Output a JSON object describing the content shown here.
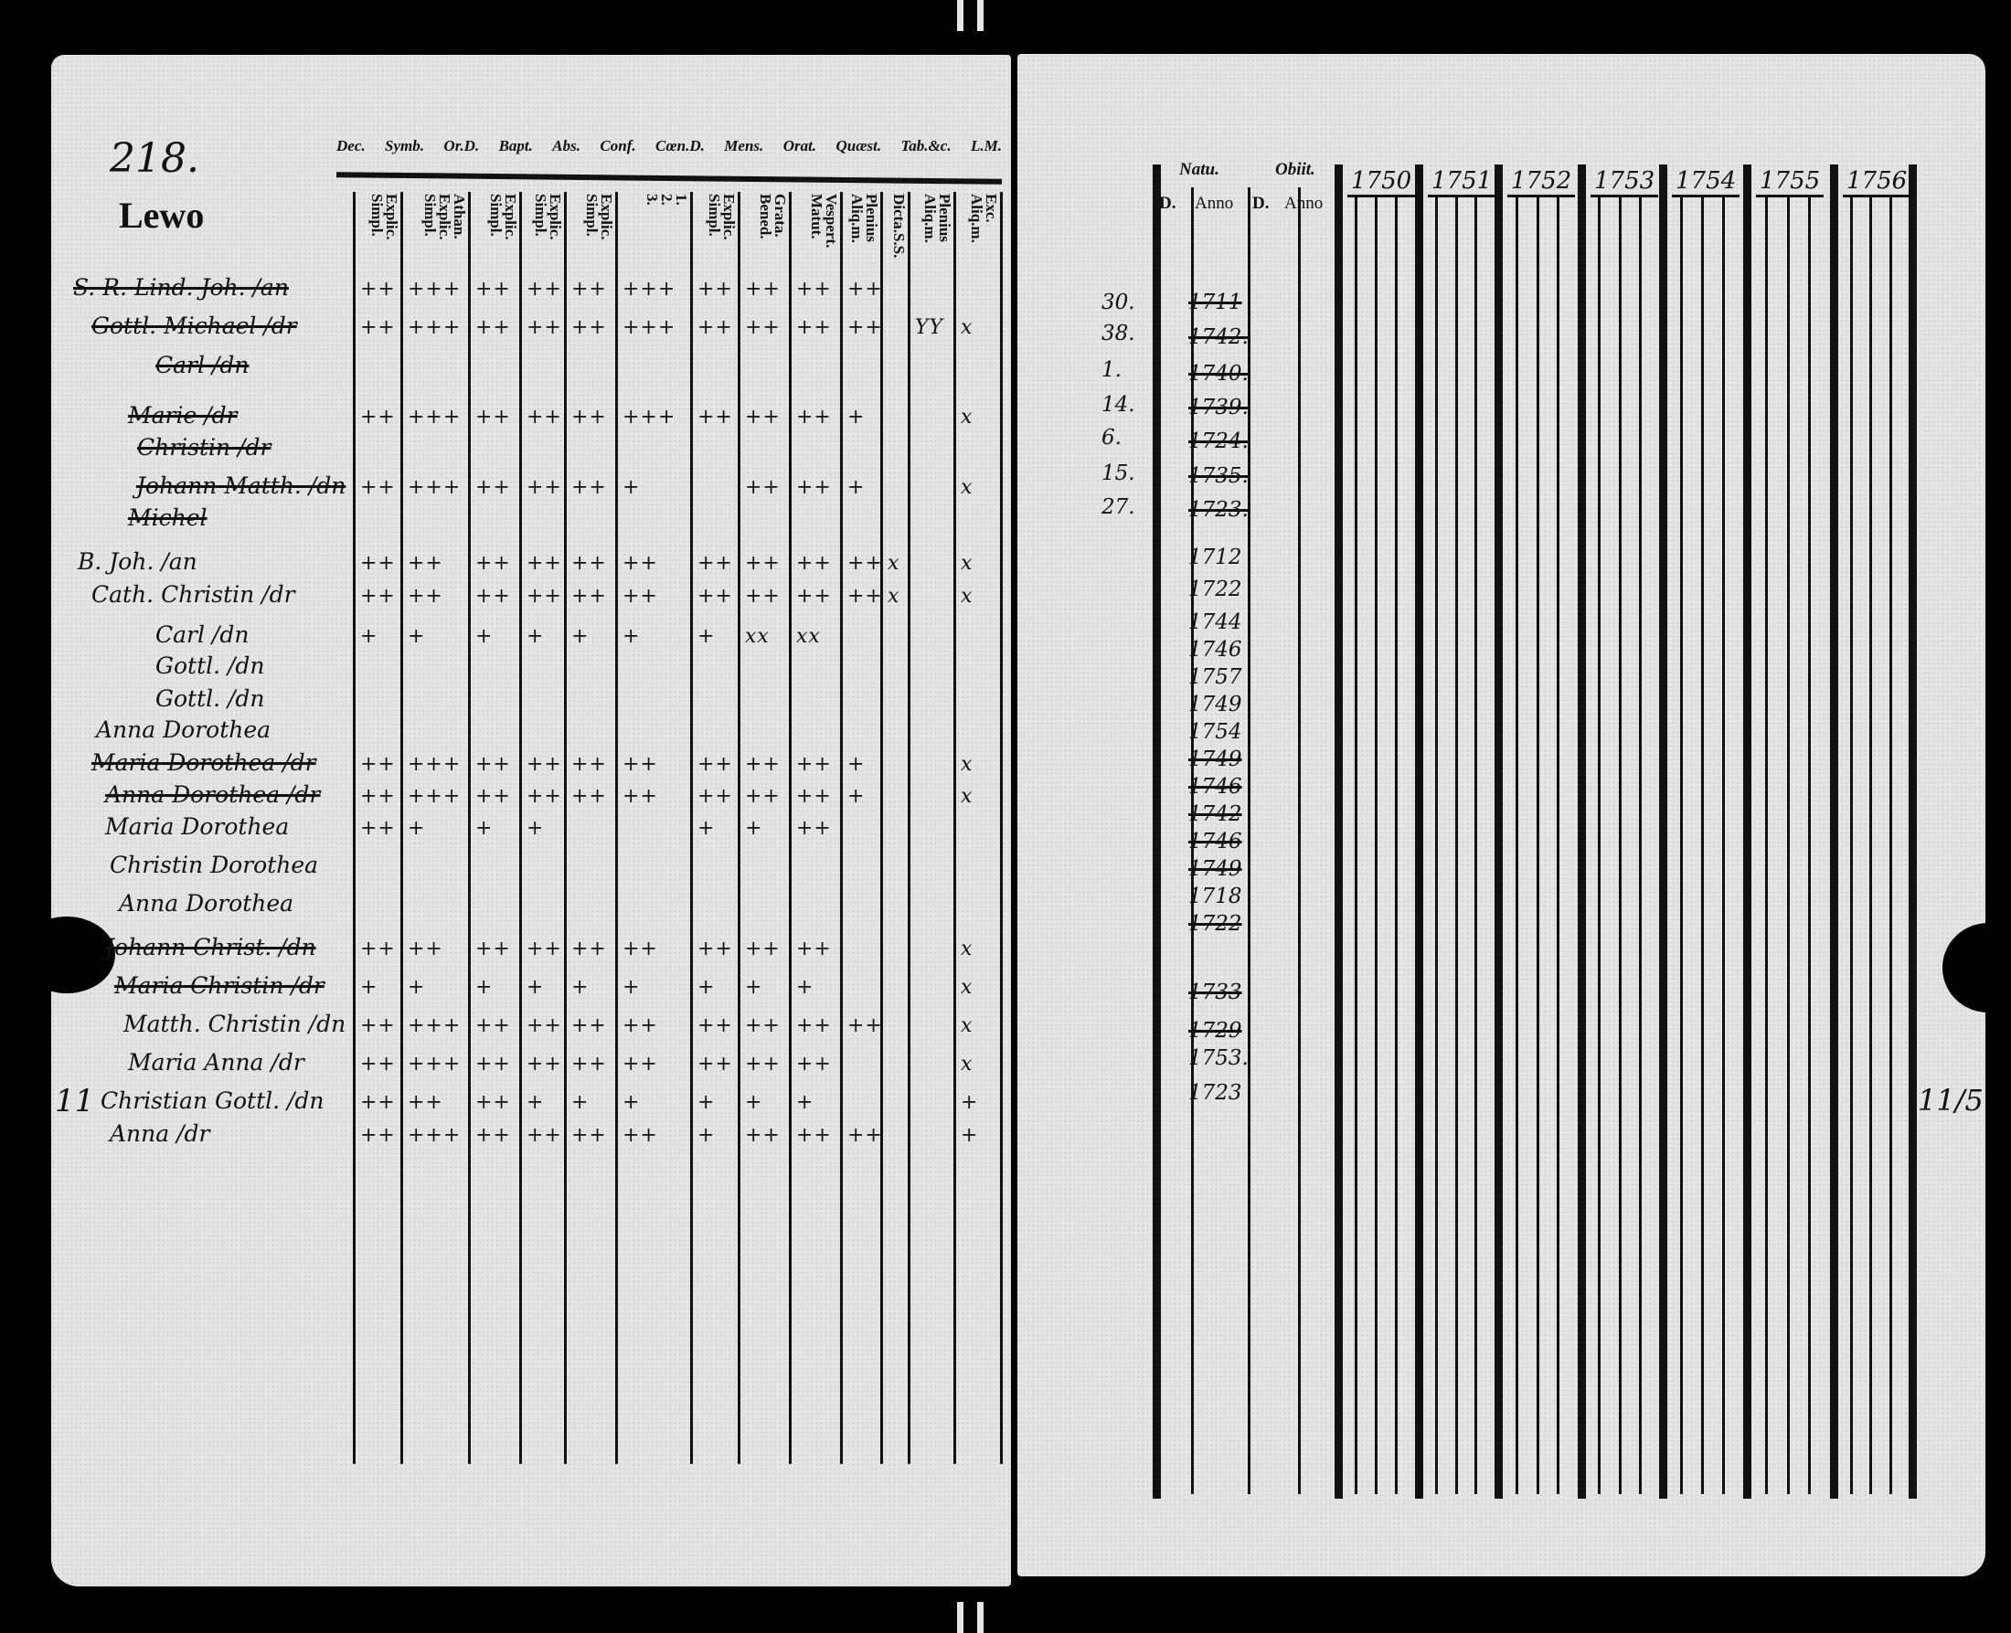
{
  "left_page": {
    "page_number": "218.",
    "place": "Lewo",
    "header_words": [
      "Dec.",
      "Symb.",
      "Or.D.",
      "Bapt.",
      "Abs.",
      "Conf.",
      "Cœn.D.",
      "Mens.",
      "Orat.",
      "Quæst.",
      "Tab.&c.",
      "L.M."
    ],
    "columns": [
      [
        "Explic.",
        "Simpl."
      ],
      [
        "Athan.",
        "Explic.",
        "Simpl."
      ],
      [
        "Explic.",
        "Simpl."
      ],
      [
        "Explic.",
        "Simpl."
      ],
      [
        "Explic.",
        "Simpl."
      ],
      [
        "1.",
        "2.",
        "3."
      ],
      [
        "Explic.",
        "Simpl."
      ],
      [
        "Grata.",
        "Bened."
      ],
      [
        "Vespert.",
        "Matut."
      ],
      [
        "Plenius",
        "Aliq.m."
      ],
      [
        "Dicta.S.S."
      ],
      [
        "Plenius",
        "Aliq.m."
      ],
      [
        "Exc.",
        "Aliq.m."
      ]
    ],
    "rows": [
      {
        "name": "S. R. Lind. Joh. /an",
        "marks": [
          "++",
          "+++",
          "++",
          "++",
          "++",
          "+++",
          "++",
          "++",
          "++",
          "++",
          "",
          "",
          ""
        ],
        "struck": true
      },
      {
        "name": "Gottl. Michael /dr",
        "marks": [
          "++",
          "+++",
          "++",
          "++",
          "++",
          "+++",
          "++",
          "++",
          "++",
          "++",
          "",
          "YY",
          "x"
        ],
        "struck": true
      },
      {
        "name": "Carl /dn",
        "marks": [
          "",
          "",
          "",
          "",
          "",
          "",
          "",
          "",
          "",
          "",
          "",
          "",
          ""
        ],
        "struck": true
      },
      {
        "name": "Marie /dr",
        "marks": [
          "++",
          "+++",
          "++",
          "++",
          "++",
          "+++",
          "++",
          "++",
          "++",
          "+",
          "",
          "",
          "x"
        ],
        "struck": true
      },
      {
        "name": "Christin /dr",
        "marks": [
          "",
          "",
          "",
          "",
          "",
          "",
          "",
          "",
          "",
          "",
          "",
          "",
          ""
        ],
        "struck": true
      },
      {
        "name": "Johann Matth. /dn",
        "marks": [
          "++",
          "+++",
          "++",
          "++",
          "++",
          "+",
          "",
          "++",
          "++",
          "+",
          "",
          "",
          "x"
        ],
        "struck": true
      },
      {
        "name": "Michel",
        "marks": [
          "",
          "",
          "",
          "",
          "",
          "",
          "",
          "",
          "",
          "",
          "",
          "",
          ""
        ],
        "struck": true
      },
      {
        "name": "B. Joh. /an",
        "marks": [
          "++",
          "++",
          "++",
          "++",
          "++",
          "++",
          "++",
          "++",
          "++",
          "++",
          "x",
          "",
          "x"
        ],
        "struck": false
      },
      {
        "name": "Cath. Christin /dr",
        "marks": [
          "++",
          "++",
          "++",
          "++",
          "++",
          "++",
          "++",
          "++",
          "++",
          "++",
          "x",
          "",
          "x"
        ],
        "struck": false
      },
      {
        "name": "Carl /dn",
        "marks": [
          "+",
          "+",
          "+",
          "+",
          "+",
          "+",
          "+",
          "xx",
          "xx",
          "",
          "",
          "",
          ""
        ],
        "struck": false
      },
      {
        "name": "Gottl. /dn",
        "marks": [
          "",
          "",
          "",
          "",
          "",
          "",
          "",
          "",
          "",
          "",
          "",
          "",
          ""
        ],
        "struck": false
      },
      {
        "name": "Gottl. /dn",
        "marks": [
          "",
          "",
          "",
          "",
          "",
          "",
          "",
          "",
          "",
          "",
          "",
          "",
          ""
        ],
        "struck": false
      },
      {
        "name": "Anna Dorothea",
        "marks": [
          "",
          "",
          "",
          "",
          "",
          "",
          "",
          "",
          "",
          "",
          "",
          "",
          ""
        ],
        "struck": false
      },
      {
        "name": "Maria Dorothea /dr",
        "marks": [
          "++",
          "+++",
          "++",
          "++",
          "++",
          "++",
          "++",
          "++",
          "++",
          "+",
          "",
          "",
          "x"
        ],
        "struck": true
      },
      {
        "name": "Anna Dorothea /dr",
        "marks": [
          "++",
          "+++",
          "++",
          "++",
          "++",
          "++",
          "++",
          "++",
          "++",
          "+",
          "",
          "",
          "x"
        ],
        "struck": true
      },
      {
        "name": "Maria Dorothea",
        "marks": [
          "++",
          "+",
          "+",
          "+",
          "",
          "",
          "+",
          "+",
          "++",
          "",
          "",
          "",
          ""
        ],
        "struck": false
      },
      {
        "name": "Christin Dorothea",
        "marks": [
          "",
          "",
          "",
          "",
          "",
          "",
          "",
          "",
          "",
          "",
          "",
          "",
          ""
        ],
        "struck": false
      },
      {
        "name": "Anna Dorothea",
        "marks": [
          "",
          "",
          "",
          "",
          "",
          "",
          "",
          "",
          "",
          "",
          "",
          "",
          ""
        ],
        "struck": false
      },
      {
        "name": "Johann Christ. /dn",
        "marks": [
          "++",
          "++",
          "++",
          "++",
          "++",
          "++",
          "++",
          "++",
          "++",
          "",
          "",
          "",
          "x"
        ],
        "struck": true
      },
      {
        "name": "Maria Christin /dr",
        "marks": [
          "+",
          "+",
          "+",
          "+",
          "+",
          "+",
          "+",
          "+",
          "+",
          "",
          "",
          "",
          "x"
        ],
        "struck": true
      },
      {
        "name": "Matth. Christin /dn",
        "marks": [
          "++",
          "+++",
          "++",
          "++",
          "++",
          "++",
          "++",
          "++",
          "++",
          "++",
          "",
          "",
          "x"
        ],
        "struck": false
      },
      {
        "name": "Maria Anna /dr",
        "marks": [
          "++",
          "+++",
          "++",
          "++",
          "++",
          "++",
          "++",
          "++",
          "++",
          "",
          "",
          "",
          "x"
        ],
        "struck": false
      },
      {
        "name": "Christian Gottl. /dn",
        "marks": [
          "++",
          "++",
          "++",
          "+",
          "+",
          "+",
          "+",
          "+",
          "+",
          "",
          "",
          "",
          "+"
        ],
        "struck": false
      },
      {
        "name": "Anna /dr",
        "marks": [
          "++",
          "+++",
          "++",
          "++",
          "++",
          "++",
          "+",
          "++",
          "++",
          "++",
          "",
          "",
          "+"
        ],
        "struck": false
      }
    ],
    "margin_note": "11"
  },
  "right_page": {
    "natu_label": "Natu.",
    "obiit_label": "Obiit.",
    "d_label": "D.",
    "anno_label": "Anno",
    "years": [
      "1750",
      "1751",
      "1752",
      "1753",
      "1754",
      "1755",
      "1756"
    ],
    "day_entries": [
      "30.",
      "38.",
      "1.",
      "14.",
      "6.",
      "15.",
      "27."
    ],
    "anno_entries": [
      "1711",
      "1742.",
      "1740.",
      "1739.",
      "1724.",
      "1735.",
      "1723.",
      "1712",
      "1722",
      "1744",
      "1746",
      "1757",
      "1749",
      "1754",
      "1749",
      "1746",
      "1742",
      "1746",
      "1749",
      "1718",
      "1722",
      "1733",
      "1729",
      "1753.",
      "1723"
    ],
    "margin_note": "11/5"
  }
}
